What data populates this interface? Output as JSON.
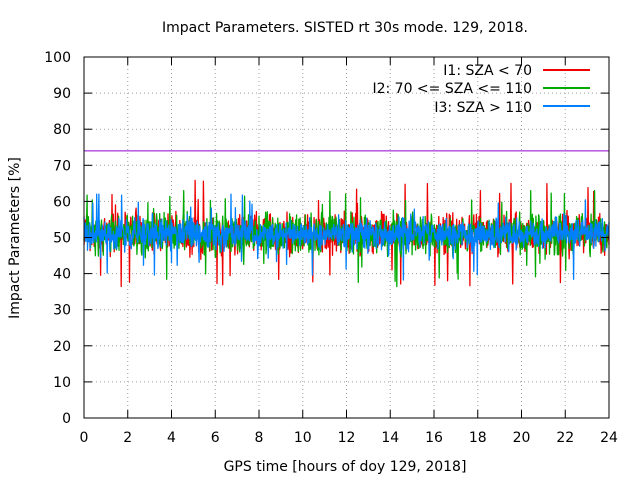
{
  "chart_data": {
    "type": "line",
    "title": "Impact Parameters. SISTED rt 30s mode. 129, 2018.",
    "xlabel": "GPS time [hours of doy 129, 2018]",
    "ylabel": "Impact Parameters [%]",
    "xlim": [
      0,
      24
    ],
    "ylim": [
      0,
      100
    ],
    "x_ticks": [
      "0",
      "2",
      "4",
      "6",
      "8",
      "10",
      "12",
      "14",
      "16",
      "18",
      "20",
      "22",
      "24"
    ],
    "y_ticks": [
      "0",
      "10",
      "20",
      "30",
      "40",
      "50",
      "60",
      "70",
      "80",
      "90",
      "100"
    ],
    "grid": true,
    "legend_position": "top-right",
    "threshold": {
      "value": 74,
      "color": "#9400d3"
    },
    "series": [
      {
        "name": "I1: SZA < 70",
        "color": "#ee0000",
        "baseline": 51,
        "spread": 8,
        "x_range": [
          0,
          24
        ],
        "min_observed": 35,
        "max_observed": 66
      },
      {
        "name": "I2: 70 <= SZA <= 110",
        "color": "#00aa00",
        "baseline": 51,
        "spread": 8,
        "x_range": [
          0,
          24
        ],
        "min_observed": 35,
        "max_observed": 63
      },
      {
        "name": "I3: SZA > 110",
        "color": "#0080ff",
        "baseline": 51,
        "spread": 6,
        "x_range": [
          0,
          24
        ],
        "min_observed": 36,
        "max_observed": 62
      }
    ]
  }
}
